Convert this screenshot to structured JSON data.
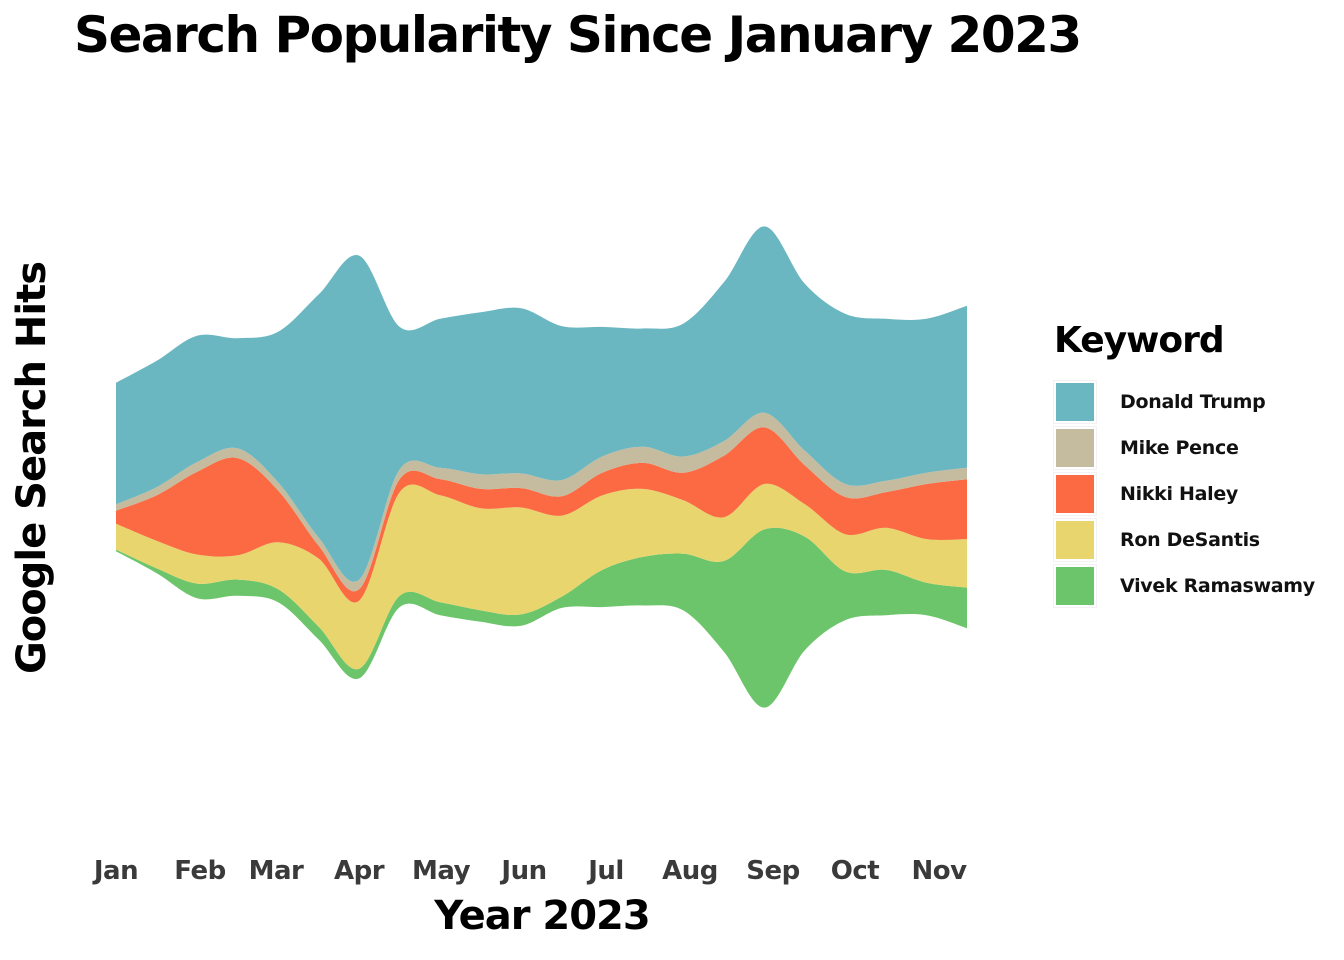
{
  "chart_data": {
    "type": "area",
    "subtype": "streamgraph",
    "title": "Search Popularity Since January 2023",
    "xlabel": "Year 2023",
    "ylabel": "Google Search Hits",
    "categories": [
      "Jan",
      "Feb",
      "Mar",
      "Apr",
      "May",
      "Jun",
      "Jul",
      "Aug",
      "Sep",
      "Oct",
      "Nov"
    ],
    "x": [
      "Jan 1",
      "Jan 15",
      "Feb 1",
      "Feb 15",
      "Mar 1",
      "Mar 15",
      "Apr 1",
      "Apr 15",
      "May 1",
      "May 15",
      "Jun 1",
      "Jun 15",
      "Jul 1",
      "Jul 15",
      "Aug 1",
      "Aug 15",
      "Sep 1",
      "Sep 15",
      "Oct 1",
      "Oct 15",
      "Nov 1",
      "Nov 15"
    ],
    "series": [
      {
        "name": "Vivek Ramaswamy",
        "color": "#6cc56a",
        "values": [
          1,
          3,
          9,
          10,
          8,
          8,
          6,
          7,
          8,
          7,
          7,
          7,
          23,
          30,
          35,
          56,
          110,
          70,
          30,
          28,
          20,
          25
        ]
      },
      {
        "name": "Ron DeSantis",
        "color": "#e8d56e",
        "values": [
          16,
          17,
          18,
          15,
          29,
          42,
          42,
          64,
          66,
          63,
          66,
          50,
          46,
          42,
          33,
          27,
          28,
          20,
          23,
          26,
          27,
          30
        ]
      },
      {
        "name": "Nikki Haley",
        "color": "#fb6a42",
        "values": [
          8,
          28,
          51,
          60,
          32,
          8,
          7,
          8,
          10,
          12,
          12,
          12,
          14,
          16,
          17,
          38,
          35,
          24,
          23,
          22,
          34,
          37
        ]
      },
      {
        "name": "Mike Pence",
        "color": "#c5bc9f",
        "values": [
          4,
          5,
          6,
          6,
          5,
          5,
          6,
          6,
          7,
          9,
          9,
          10,
          10,
          10,
          10,
          9,
          9,
          9,
          8,
          7,
          7,
          7
        ]
      },
      {
        "name": "Donald Trump",
        "color": "#6bb7c1",
        "values": [
          75,
          78,
          78,
          68,
          93,
          150,
          200,
          88,
          92,
          100,
          102,
          95,
          80,
          73,
          82,
          98,
          115,
          103,
          105,
          100,
          95,
          100
        ]
      }
    ],
    "legend": {
      "title": "Keyword",
      "position": "right"
    },
    "grid": false,
    "y_tick_labels": false
  }
}
